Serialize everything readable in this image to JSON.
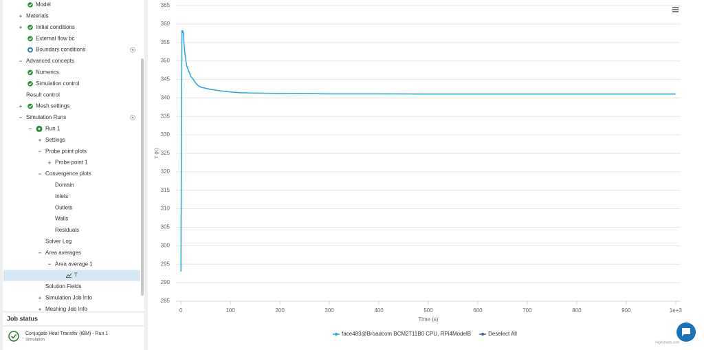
{
  "tree": [
    {
      "label": "Model"
    },
    {
      "label": "Materials"
    },
    {
      "label": "Initial conditions"
    },
    {
      "label": "External flow bc"
    },
    {
      "label": "Boundary conditions"
    },
    {
      "label": "Advanced concepts"
    },
    {
      "label": "Numerics"
    },
    {
      "label": "Simulation control"
    },
    {
      "label": "Result control"
    },
    {
      "label": "Mesh settings"
    },
    {
      "label": "Simulation Runs"
    },
    {
      "label": "Run 1"
    },
    {
      "label": "Settings"
    },
    {
      "label": "Probe point plots"
    },
    {
      "label": "Probe point 1"
    },
    {
      "label": "Convergence plots"
    },
    {
      "label": "Domain"
    },
    {
      "label": "Inlets"
    },
    {
      "label": "Outlets"
    },
    {
      "label": "Walls"
    },
    {
      "label": "Residuals"
    },
    {
      "label": "Solver Log"
    },
    {
      "label": "Area averages"
    },
    {
      "label": "Area average 1"
    },
    {
      "label": "T"
    },
    {
      "label": "Solution Fields"
    },
    {
      "label": "Simulation Job Info"
    },
    {
      "label": "Meshing Job Info"
    }
  ],
  "job_status": {
    "title": "Job status",
    "job_name": "Conjugate Heat Transfer (IBM) - Run 1",
    "job_type": "Simulation"
  },
  "chart_data": {
    "type": "line",
    "x_label": "Time (s)",
    "y_label": "T (K)",
    "credit": "Highcharts.com",
    "x": [
      0,
      1,
      2,
      3,
      4,
      5,
      6,
      8,
      10,
      12,
      15,
      18,
      20,
      25,
      30,
      35,
      40,
      50,
      60,
      80,
      100,
      120,
      150,
      200,
      300,
      400,
      500,
      600,
      700,
      800,
      900,
      1000
    ],
    "series": [
      {
        "name": "face483@Broadcom BCM2711B0 CPU, RPi4ModelB",
        "color": "#2ba3e3",
        "values": [
          293,
          330,
          358.3,
          357.5,
          358,
          357.6,
          355,
          352,
          350,
          348.5,
          347.5,
          346.5,
          345.8,
          345,
          344,
          343.3,
          342.9,
          342.6,
          342.3,
          341.9,
          341.6,
          341.4,
          341.3,
          341.2,
          341.1,
          341.1,
          341.05,
          341.05,
          341.05,
          341.05,
          341.05,
          341.05
        ]
      }
    ],
    "legend_extra": {
      "label": "Deselect All",
      "color": "#3d5a99"
    },
    "xlim": [
      -10,
      1010
    ],
    "xticks": [
      0,
      100,
      200,
      300,
      400,
      500,
      600,
      700,
      800,
      900,
      {
        "value": 1000,
        "label": "1e+3"
      }
    ],
    "ylim": [
      285,
      365
    ],
    "yticks": [
      285,
      290,
      295,
      300,
      305,
      310,
      315,
      320,
      325,
      330,
      335,
      340,
      345,
      350,
      355,
      360,
      365
    ],
    "grid": true
  }
}
